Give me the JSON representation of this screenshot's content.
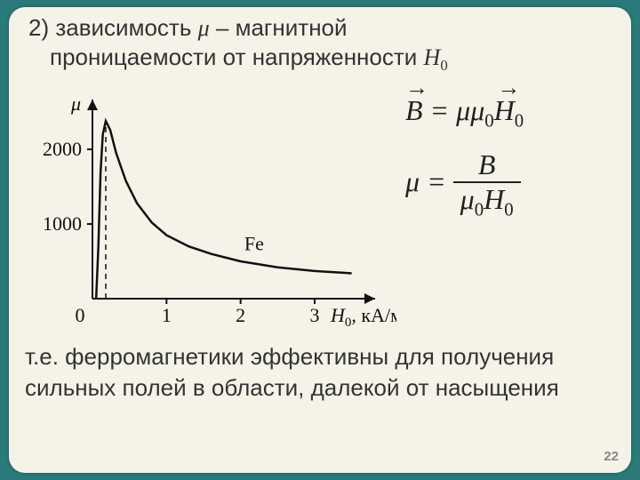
{
  "title": {
    "prefix": "2) зависимость ",
    "mu": "μ",
    "dash": " –  магнитной",
    "line2_a": "проницаемости от напряженности ",
    "H0": "H",
    "H0_sub": "0"
  },
  "chart": {
    "type": "line",
    "y_axis_label": "μ",
    "x_axis_label_var": "H",
    "x_axis_label_sub": "0",
    "x_axis_label_unit": ", кА/м",
    "material_label": "Fe",
    "x_ticks": [
      0,
      1,
      2,
      3
    ],
    "y_ticks": [
      1000,
      2000
    ],
    "xlim": [
      0,
      3.6
    ],
    "ylim": [
      0,
      2500
    ],
    "peak_x": 0.18,
    "curve_points": [
      [
        0.05,
        0
      ],
      [
        0.08,
        700
      ],
      [
        0.11,
        1700
      ],
      [
        0.14,
        2200
      ],
      [
        0.18,
        2380
      ],
      [
        0.24,
        2260
      ],
      [
        0.32,
        1950
      ],
      [
        0.45,
        1580
      ],
      [
        0.6,
        1280
      ],
      [
        0.8,
        1020
      ],
      [
        1.0,
        850
      ],
      [
        1.3,
        700
      ],
      [
        1.6,
        600
      ],
      [
        2.0,
        500
      ],
      [
        2.5,
        420
      ],
      [
        3.0,
        370
      ],
      [
        3.5,
        340
      ]
    ],
    "colors": {
      "background": "#f5f3e8",
      "axis": "#111111",
      "curve": "#111111",
      "text": "#111111"
    },
    "line_width": 2.5,
    "fontsize_labels": 22
  },
  "formulas": {
    "f1_lhs_B": "B",
    "f1_eq": " = ",
    "f1_mu": "μμ",
    "f1_sub0": "0",
    "f1_H": "H",
    "f2_lhs": "μ",
    "f2_eq": " = ",
    "f2_num": "B",
    "f2_den_mu": "μ",
    "f2_den_0": "0",
    "f2_den_H": "H"
  },
  "footer": {
    "text": "т.е. ферромагнетики эффективны для получения сильных полей в области, далекой от насыщения"
  },
  "page_number": "22"
}
